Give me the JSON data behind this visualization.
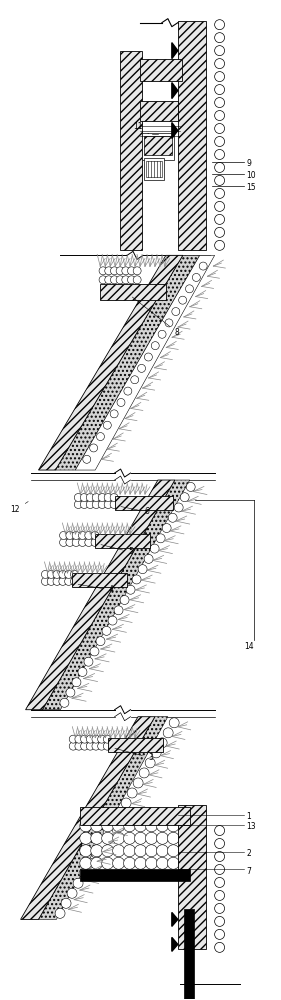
{
  "bg_color": "#ffffff",
  "line_color": "#000000",
  "fig_width": 2.81,
  "fig_height": 10.0,
  "dpi": 100
}
